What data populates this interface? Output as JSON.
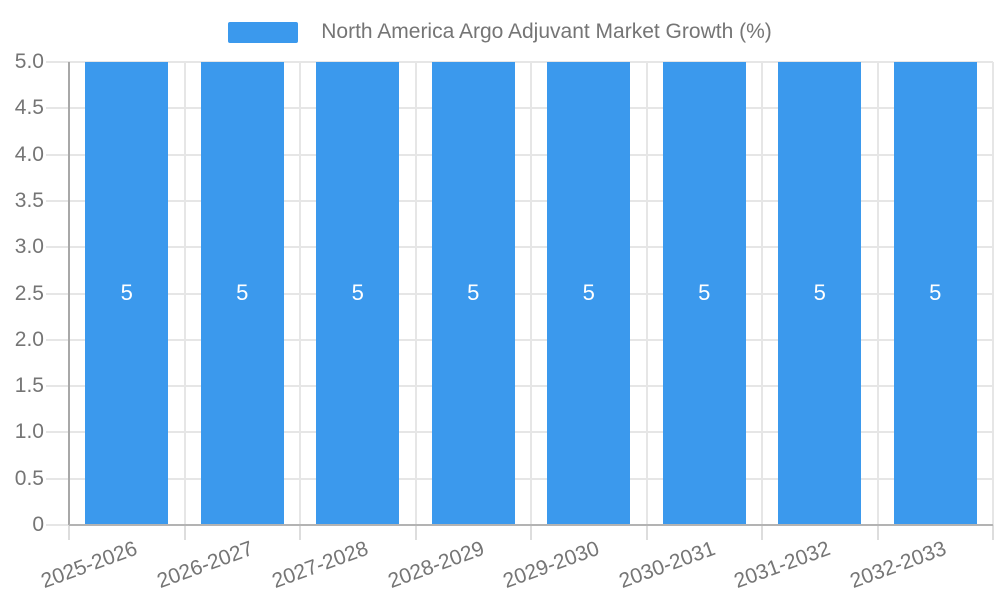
{
  "legend": {
    "label": "North America Argo Adjuvant Market Growth (%)"
  },
  "chart_data": {
    "type": "bar",
    "title": "North America Argo Adjuvant Market Growth (%)",
    "categories": [
      "2025-2026",
      "2026-2027",
      "2027-2028",
      "2028-2029",
      "2029-2030",
      "2030-2031",
      "2031-2032",
      "2032-2033"
    ],
    "series": [
      {
        "name": "North America Argo Adjuvant Market Growth (%)",
        "values": [
          5,
          5,
          5,
          5,
          5,
          5,
          5,
          5
        ]
      }
    ],
    "bar_value_labels": [
      "5",
      "5",
      "5",
      "5",
      "5",
      "5",
      "5",
      "5"
    ],
    "xlabel": "",
    "ylabel": "",
    "ylim": [
      0,
      5
    ],
    "ytick_step": 0.5,
    "ytick_labels": [
      "5.0",
      "4.5",
      "4.0",
      "3.5",
      "3.0",
      "2.5",
      "2.0",
      "1.5",
      "1.0",
      "0.5",
      "0"
    ],
    "grid": true,
    "legend_position": "top",
    "x_label_rotation_deg": -20,
    "colors": {
      "bar": "#3B99ED",
      "bar_label": "#FFFFFF",
      "axis_text": "#757575",
      "legend_text": "#757575",
      "gridline": "#E6E6E6",
      "tick": "#DDDDDD",
      "y_axis_line": "#A8A8A8",
      "x_axis_line": "#B3B3B3",
      "background": "#FFFFFF"
    }
  }
}
